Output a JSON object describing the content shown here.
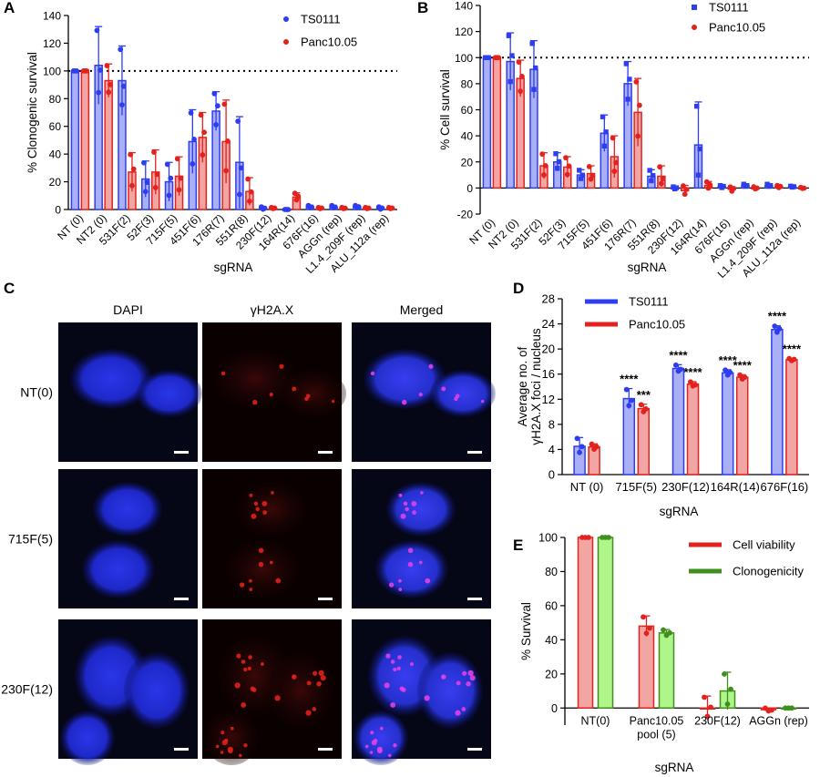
{
  "figure": {
    "colors": {
      "blue": "#2f3df0",
      "red": "#e3221e",
      "green": "#3f8f1f",
      "blue_fill": "#aab0f5",
      "red_fill": "#f2a6a4",
      "green_fill": "#b0f58a"
    }
  },
  "chart_data": [
    {
      "panel": "A",
      "type": "bar",
      "categories": [
        "NT (0)",
        "NT2 (0)",
        "531F(2)",
        "52F(3)",
        "715F(5)",
        "451F(6)",
        "176R(7)",
        "551R(8)",
        "230F(12)",
        "164R(14)",
        "676F(16)",
        "AGGn (rep)",
        "L1.4_209F (rep)",
        "ALU_112a (rep)"
      ],
      "series": [
        {
          "name": "TS0111",
          "values": [
            100,
            104,
            93,
            22,
            20,
            49,
            71,
            34,
            1,
            0,
            2,
            2,
            2,
            1
          ],
          "errors": [
            0,
            28,
            25,
            13,
            14,
            23,
            14,
            33,
            1,
            0,
            1,
            1,
            1,
            1
          ]
        },
        {
          "name": "Panc10.05",
          "values": [
            100,
            93,
            27,
            27,
            24,
            52,
            49,
            13,
            1,
            9,
            1,
            1,
            1,
            1
          ],
          "errors": [
            0,
            12,
            14,
            16,
            14,
            18,
            30,
            10,
            0.5,
            3,
            0.5,
            0.5,
            0.5,
            0.5
          ]
        }
      ],
      "ylabel": "% Clonogenic survival",
      "xlabel": "sgRNA",
      "ylim": [
        0,
        140
      ],
      "yticks": [
        0,
        20,
        40,
        60,
        80,
        100,
        120,
        140
      ],
      "reference_line": 100
    },
    {
      "panel": "B",
      "type": "bar",
      "categories": [
        "NT (0)",
        "NT2 (0)",
        "531F(2)",
        "52F(3)",
        "715F(5)",
        "451F(6)",
        "176R(7)",
        "551R(8)",
        "230F(12)",
        "164R(14)",
        "676F(16)",
        "AGGn (rep)",
        "L1.4_209F (rep)",
        "ALU_112a (rep)"
      ],
      "series": [
        {
          "name": "TS0111",
          "values": [
            100,
            97,
            91,
            20,
            10,
            42,
            80,
            9,
            0,
            33,
            1,
            2,
            2,
            1
          ],
          "errors": [
            0,
            22,
            22,
            7,
            4,
            14,
            17,
            5,
            1,
            33,
            1,
            1,
            1,
            0.5
          ]
        },
        {
          "name": "Panc10.05",
          "values": [
            100,
            84,
            17,
            16,
            11,
            24,
            58,
            9,
            -2,
            2,
            -1,
            0,
            1,
            0
          ],
          "errors": [
            0,
            14,
            10,
            8,
            6,
            16,
            26,
            8,
            4,
            3,
            2,
            1,
            1,
            0.5
          ]
        }
      ],
      "ylabel": "% Cell survival",
      "xlabel": "sgRNA",
      "ylim": [
        -20,
        140
      ],
      "yticks": [
        -20,
        0,
        20,
        40,
        60,
        80,
        100,
        120,
        140
      ],
      "reference_line": 100
    },
    {
      "panel": "D",
      "type": "bar",
      "categories": [
        "NT (0)",
        "715F(5)",
        "230F(12)",
        "164R(14)",
        "676F(16)"
      ],
      "series": [
        {
          "name": "TS0111",
          "values": [
            4.5,
            12.1,
            16.9,
            16.2,
            23.1
          ],
          "errors": [
            1.4,
            1.6,
            0.6,
            0.5,
            0.6
          ],
          "significance": [
            "",
            "****",
            "****",
            "****",
            "****"
          ]
        },
        {
          "name": "Panc10.05",
          "values": [
            4.4,
            10.5,
            14.4,
            15.5,
            18.3
          ],
          "errors": [
            0.5,
            0.7,
            0.4,
            0.4,
            0.2
          ],
          "significance": [
            "",
            "***",
            "****",
            "****",
            "****"
          ]
        }
      ],
      "ylabel": [
        "Average no. of",
        "γH2A.X foci / nucleus"
      ],
      "xlabel": "sgRNA",
      "ylim": [
        0,
        28
      ],
      "yticks": [
        0,
        4,
        8,
        12,
        16,
        20,
        24,
        28
      ]
    },
    {
      "panel": "E",
      "type": "bar",
      "categories": [
        "NT(0)",
        [
          "Panc10.05",
          "pool (5)"
        ],
        "230F(12)",
        "AGGn (rep)"
      ],
      "series": [
        {
          "name": "Cell viability",
          "values": [
            100,
            48,
            0,
            -1
          ],
          "errors": [
            0,
            6,
            7,
            1
          ]
        },
        {
          "name": "Clonogenicity",
          "values": [
            100,
            44,
            10,
            0
          ],
          "errors": [
            0,
            2,
            11,
            0
          ]
        }
      ],
      "ylabel": "% Survival",
      "xlabel": "sgRNA",
      "ylim": [
        -10,
        100
      ],
      "yticks": [
        0,
        20,
        40,
        60,
        80,
        100
      ]
    }
  ],
  "panel_c": {
    "columns": [
      "DAPI",
      "γH2A.X",
      "Merged"
    ],
    "rows": [
      "NT(0)",
      "715F(5)",
      "230F(12)"
    ]
  },
  "panel_labels": [
    "A",
    "B",
    "C",
    "D",
    "E"
  ]
}
